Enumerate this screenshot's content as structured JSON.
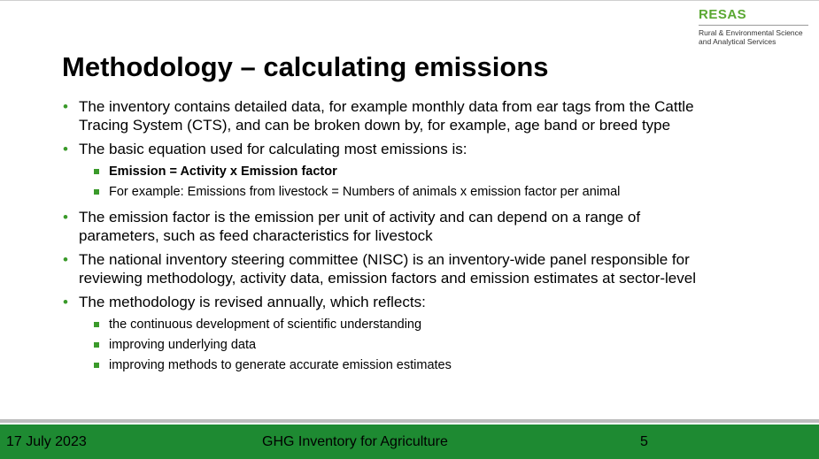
{
  "logo": {
    "title": "RESAS",
    "subtitle_line1": "Rural & Environmental Science",
    "subtitle_line2": "and Analytical Services"
  },
  "slide": {
    "title": "Methodology – calculating emissions",
    "bullets": [
      {
        "line1": "The inventory contains detailed data, for example monthly data from ear tags from the Cattle",
        "line2": "Tracing System (CTS), and can be broken down by, for example, age band or breed type"
      },
      {
        "line1": "The basic equation used for calculating most emissions is:",
        "subitems": [
          "Emission = Activity x Emission factor",
          "For example: Emissions from livestock = Numbers of animals x emission factor per animal"
        ]
      },
      {
        "line1": "The emission factor is the emission per unit of activity and can depend on a range of",
        "line2": "parameters, such as feed characteristics for livestock"
      },
      {
        "line1": "The national inventory steering committee (NISC) is an inventory-wide panel responsible for",
        "line2": "reviewing methodology, activity data, emission factors and emission estimates at sector-level"
      },
      {
        "line1": "The methodology is revised annually, which reflects:",
        "subitems": [
          "the continuous development of scientific understanding",
          "improving underlying data",
          "improving methods to generate accurate emission estimates"
        ]
      }
    ]
  },
  "footer": {
    "date": "17 July 2023",
    "title": "GHG Inventory for Agriculture",
    "page": "5"
  },
  "colors": {
    "accent_green": "#3a9a2a",
    "logo_green": "#5aa832",
    "footer_green": "#1e8a32"
  }
}
